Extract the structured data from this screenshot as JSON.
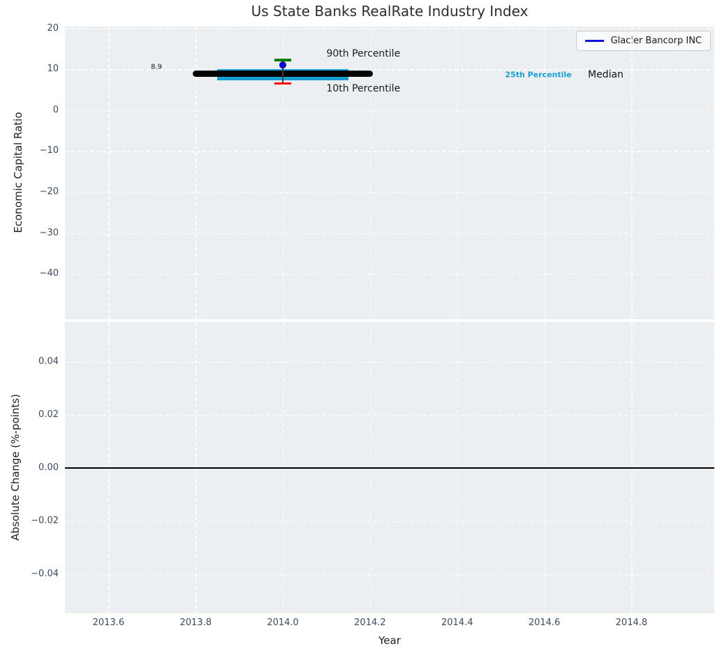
{
  "chart_data": {
    "type": "line",
    "title": "Us State Banks RealRate Industry Index",
    "x": {
      "label": "Year",
      "lim": [
        2013.5,
        2014.99
      ],
      "ticks": [
        2013.6,
        2013.8,
        2014.0,
        2014.2,
        2014.4,
        2014.6,
        2014.8
      ],
      "tick_decimals": 1
    },
    "legend": {
      "label": "Glacier Bancorp INC",
      "line_color": "#1212d6",
      "position": "upper right"
    },
    "panels": [
      {
        "ylabel": "Economic Capital Ratio",
        "ylim": [
          -51.1,
          20.5
        ],
        "yticks": [
          20,
          10,
          0,
          -10,
          -20,
          -30,
          -40
        ],
        "grid": true,
        "series": {
          "median_line": {
            "value": 8.9,
            "x_start": 2013.8,
            "x_end": 2014.2,
            "color": "#000000"
          },
          "iqr_band": {
            "p25": 7.4,
            "p75": 10.1,
            "x_start": 2013.85,
            "x_end": 2014.15,
            "color": "#179fd4"
          },
          "whisker": {
            "x": 2014.0,
            "p10": 6.6,
            "p90": 12.3,
            "p90_cap_color": "#007c00",
            "p10_cap_color": "#fb0000",
            "line_color": "#3a3a3a"
          },
          "company_point": {
            "name": "Glacier Bancorp INC",
            "x": 2014.0,
            "value": 11.1,
            "color": "#0b0bdc",
            "edge_color": "#000078"
          }
        },
        "annotations": [
          {
            "text": "8.9",
            "x": 2013.71,
            "y": 10.6,
            "color": "#111111",
            "size": 10,
            "anchor": "center",
            "bold": false
          },
          {
            "text": "90th Percentile",
            "x": 2014.1,
            "y": 13.8,
            "color": "#1a1a1a",
            "size": 14,
            "anchor": "left",
            "bold": false
          },
          {
            "text": "10th Percentile",
            "x": 2014.1,
            "y": 5.3,
            "color": "#1a1a1a",
            "size": 14,
            "anchor": "left",
            "bold": false
          },
          {
            "text": "25th Percentile",
            "x": 2014.51,
            "y": 8.7,
            "color": "#179fd4",
            "size": 11,
            "anchor": "left",
            "bold": true
          },
          {
            "text": "Median",
            "x": 2014.7,
            "y": 8.76,
            "color": "#111111",
            "size": 14,
            "anchor": "left",
            "bold": false
          }
        ]
      },
      {
        "ylabel": "Absolute Change (%-points)",
        "ylim": [
          -0.0547,
          0.055
        ],
        "yticks": [
          0.04,
          0.02,
          0,
          -0.02,
          -0.04
        ],
        "ytick_decimals": 2,
        "grid": true,
        "zero_line": {
          "y": 0,
          "color": "#000000"
        },
        "annotations": []
      }
    ],
    "theme": {
      "panel_bg": "#eceff1",
      "grid_color": "#ffffff",
      "tick_label_color": "#3b4c60",
      "title_color": "#2d2d2d",
      "axis_label_color": "#1f1f1f"
    }
  }
}
